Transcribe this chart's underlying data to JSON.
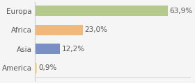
{
  "categories": [
    "Europa",
    "Africa",
    "Asia",
    "America"
  ],
  "values": [
    63.9,
    23.0,
    12.2,
    0.9
  ],
  "labels": [
    "63,9%",
    "23,0%",
    "12,2%",
    "0,9%"
  ],
  "bar_colors": [
    "#b5c98e",
    "#f0b87a",
    "#7b8fc7",
    "#f5e07a"
  ],
  "background_color": "#f5f5f5",
  "label_fontsize": 7.5,
  "tick_fontsize": 7.5,
  "xlim": [
    0,
    75
  ]
}
